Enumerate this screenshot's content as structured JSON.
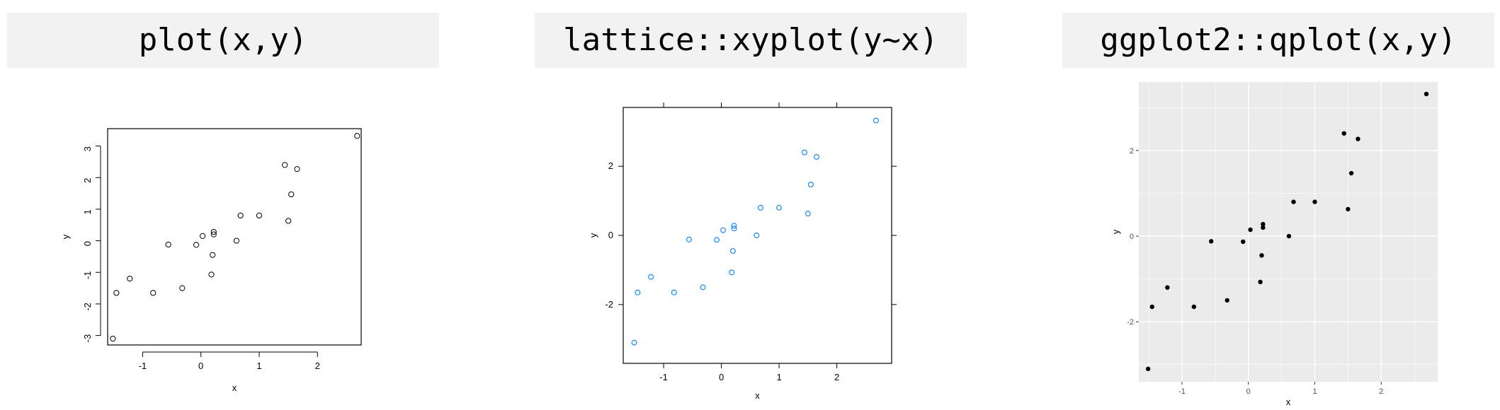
{
  "panels": [
    {
      "title": "plot(x,y)",
      "chart_data": {
        "type": "scatter",
        "style": "base",
        "xlabel": "x",
        "ylabel": "y",
        "xlim": [
          -1.6,
          2.75
        ],
        "ylim": [
          -3.3,
          3.55
        ],
        "x_ticks": [
          -1,
          0,
          1,
          2
        ],
        "x_tick_labels": [
          "-1",
          "0",
          "1",
          "2"
        ],
        "y_ticks": [
          -3,
          -2,
          -1,
          0,
          1,
          2,
          3
        ],
        "y_tick_labels": [
          "-3",
          "-2",
          "-1",
          "0",
          "1",
          "2",
          "3"
        ],
        "grid": false,
        "point_shape": "open-circle",
        "point_color": "#000000",
        "points": [
          [
            -1.51,
            -3.1
          ],
          [
            -1.45,
            -1.65
          ],
          [
            -1.22,
            -1.2
          ],
          [
            -0.82,
            -1.65
          ],
          [
            -0.56,
            -0.12
          ],
          [
            -0.32,
            -1.5
          ],
          [
            -0.08,
            -0.13
          ],
          [
            0.03,
            0.15
          ],
          [
            0.18,
            -1.07
          ],
          [
            0.2,
            -0.45
          ],
          [
            0.22,
            0.2
          ],
          [
            0.22,
            0.28
          ],
          [
            0.61,
            0.0
          ],
          [
            0.68,
            0.8
          ],
          [
            1.0,
            0.8
          ],
          [
            1.44,
            2.4
          ],
          [
            1.5,
            0.63
          ],
          [
            1.55,
            1.47
          ],
          [
            1.65,
            2.27
          ],
          [
            2.68,
            3.32
          ]
        ]
      }
    },
    {
      "title": "lattice::xyplot(y~x)",
      "chart_data": {
        "type": "scatter",
        "style": "lattice",
        "xlabel": "x",
        "ylabel": "y",
        "xlim": [
          -1.7,
          2.95
        ],
        "ylim": [
          -3.7,
          3.7
        ],
        "x_ticks": [
          -1,
          0,
          1,
          2
        ],
        "x_tick_labels": [
          "-1",
          "0",
          "1",
          "2"
        ],
        "y_ticks": [
          -2,
          0,
          2
        ],
        "y_tick_labels": [
          "-2",
          "0",
          "2"
        ],
        "grid": false,
        "point_shape": "open-circle",
        "point_color": "#0080ff",
        "points": [
          [
            -1.51,
            -3.1
          ],
          [
            -1.45,
            -1.65
          ],
          [
            -1.22,
            -1.2
          ],
          [
            -0.82,
            -1.65
          ],
          [
            -0.56,
            -0.12
          ],
          [
            -0.32,
            -1.5
          ],
          [
            -0.08,
            -0.13
          ],
          [
            0.03,
            0.15
          ],
          [
            0.18,
            -1.07
          ],
          [
            0.2,
            -0.45
          ],
          [
            0.22,
            0.2
          ],
          [
            0.22,
            0.28
          ],
          [
            0.61,
            0.0
          ],
          [
            0.68,
            0.8
          ],
          [
            1.0,
            0.8
          ],
          [
            1.44,
            2.4
          ],
          [
            1.5,
            0.63
          ],
          [
            1.55,
            1.47
          ],
          [
            1.65,
            2.27
          ],
          [
            2.68,
            3.32
          ]
        ]
      }
    },
    {
      "title": "ggplot2::qplot(x,y)",
      "chart_data": {
        "type": "scatter",
        "style": "ggplot",
        "xlabel": "x",
        "ylabel": "y",
        "xlim": [
          -1.65,
          2.85
        ],
        "ylim": [
          -3.4,
          3.6
        ],
        "x_ticks": [
          -1,
          0,
          1,
          2
        ],
        "x_tick_labels": [
          "-1",
          "0",
          "1",
          "2"
        ],
        "y_ticks": [
          -2,
          0,
          2
        ],
        "y_tick_labels": [
          "-2",
          "0",
          "2"
        ],
        "grid": true,
        "panel_background": "#ebebeb",
        "grid_color": "#ffffff",
        "point_shape": "filled-circle",
        "point_color": "#000000",
        "points": [
          [
            -1.51,
            -3.1
          ],
          [
            -1.45,
            -1.65
          ],
          [
            -1.22,
            -1.2
          ],
          [
            -0.82,
            -1.65
          ],
          [
            -0.56,
            -0.12
          ],
          [
            -0.32,
            -1.5
          ],
          [
            -0.08,
            -0.13
          ],
          [
            0.03,
            0.15
          ],
          [
            0.18,
            -1.07
          ],
          [
            0.2,
            -0.45
          ],
          [
            0.22,
            0.2
          ],
          [
            0.22,
            0.28
          ],
          [
            0.61,
            0.0
          ],
          [
            0.68,
            0.8
          ],
          [
            1.0,
            0.8
          ],
          [
            1.44,
            2.4
          ],
          [
            1.5,
            0.63
          ],
          [
            1.55,
            1.47
          ],
          [
            1.65,
            2.27
          ],
          [
            2.68,
            3.32
          ]
        ]
      }
    }
  ]
}
